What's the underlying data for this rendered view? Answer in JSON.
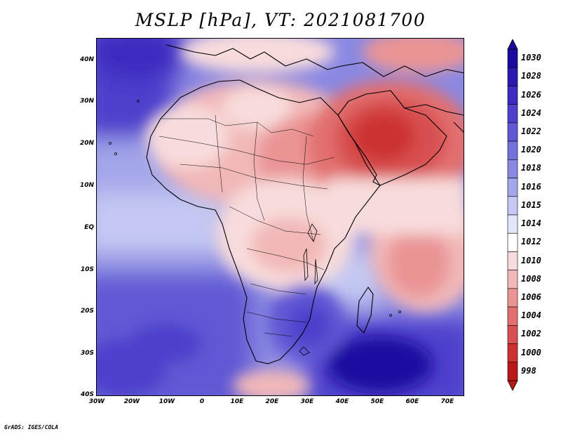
{
  "title": "MSLP [hPa], VT: 2021081700",
  "credit": "GrADS: IGES/COLA",
  "map": {
    "variable": "Mean sea level pressure",
    "units": "hPa",
    "valid_time": "2021081700",
    "lon_range": [
      -30,
      75
    ],
    "lat_range": [
      -40,
      45
    ],
    "lon_ticks": [
      {
        "value": -30,
        "label": "30W"
      },
      {
        "value": -20,
        "label": "20W"
      },
      {
        "value": -10,
        "label": "10W"
      },
      {
        "value": 0,
        "label": "0"
      },
      {
        "value": 10,
        "label": "10E"
      },
      {
        "value": 20,
        "label": "20E"
      },
      {
        "value": 30,
        "label": "30E"
      },
      {
        "value": 40,
        "label": "40E"
      },
      {
        "value": 50,
        "label": "50E"
      },
      {
        "value": 60,
        "label": "60E"
      },
      {
        "value": 70,
        "label": "70E"
      }
    ],
    "lat_ticks": [
      {
        "value": 40,
        "label": "40N"
      },
      {
        "value": 30,
        "label": "30N"
      },
      {
        "value": 20,
        "label": "20N"
      },
      {
        "value": 10,
        "label": "10N"
      },
      {
        "value": 0,
        "label": "EQ"
      },
      {
        "value": -10,
        "label": "10S"
      },
      {
        "value": -20,
        "label": "20S"
      },
      {
        "value": -30,
        "label": "30S"
      },
      {
        "value": -40,
        "label": "40S"
      }
    ]
  },
  "colorbar": {
    "levels": [
      {
        "label": "1030",
        "color": "#1a0aa0"
      },
      {
        "label": "1028",
        "color": "#2a18b0"
      },
      {
        "label": "1026",
        "color": "#3c2cc0"
      },
      {
        "label": "1024",
        "color": "#4e40cc"
      },
      {
        "label": "1022",
        "color": "#6058d4"
      },
      {
        "label": "1020",
        "color": "#7470dc"
      },
      {
        "label": "1018",
        "color": "#8a88e2"
      },
      {
        "label": "1016",
        "color": "#a4a6ea"
      },
      {
        "label": "1015",
        "color": "#c4c8f2"
      },
      {
        "label": "1014",
        "color": "#e2e6fa"
      },
      {
        "label": "1012",
        "color": "#ffffff"
      },
      {
        "label": "1010",
        "color": "#f8dcdc"
      },
      {
        "label": "1008",
        "color": "#f2b8b8"
      },
      {
        "label": "1006",
        "color": "#ea9494"
      },
      {
        "label": "1004",
        "color": "#e27070"
      },
      {
        "label": "1002",
        "color": "#d85050"
      },
      {
        "label": "1000",
        "color": "#cc3030"
      },
      {
        "label": "998",
        "color": "#b81818"
      }
    ]
  }
}
